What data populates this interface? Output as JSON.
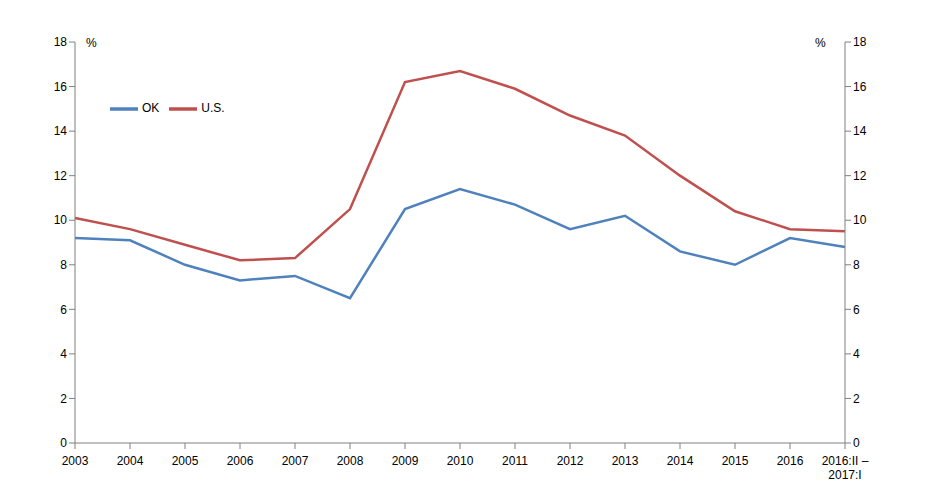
{
  "chart_data": {
    "type": "line",
    "categories": [
      "2003",
      "2004",
      "2005",
      "2006",
      "2007",
      "2008",
      "2009",
      "2010",
      "2011",
      "2012",
      "2013",
      "2014",
      "2015",
      "2016",
      "2016:II – 2017:I"
    ],
    "series": [
      {
        "name": "U.S.",
        "color": "#c0504d",
        "values": [
          10.1,
          9.6,
          8.9,
          8.2,
          8.3,
          10.5,
          16.2,
          16.7,
          15.9,
          14.7,
          13.8,
          12.0,
          10.4,
          9.6,
          9.5
        ]
      },
      {
        "name": "OK",
        "color": "#4f81bd",
        "values": [
          9.2,
          9.1,
          8.0,
          7.3,
          7.5,
          6.5,
          10.5,
          11.4,
          10.7,
          9.6,
          10.2,
          8.6,
          8.0,
          9.2,
          8.8
        ]
      }
    ],
    "y_label": "%",
    "y2_label": "%",
    "ylim": [
      0,
      18
    ],
    "yticks": [
      0,
      2,
      4,
      6,
      8,
      10,
      12,
      14,
      16,
      18
    ],
    "y2lim": [
      0,
      18
    ],
    "y2ticks": [
      0,
      2,
      4,
      6,
      8,
      10,
      12,
      14,
      16,
      18
    ],
    "grid": false,
    "legend": "upper left"
  }
}
